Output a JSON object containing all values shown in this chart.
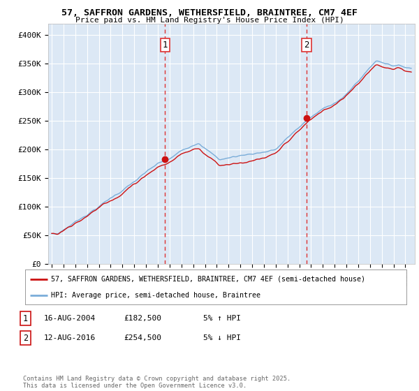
{
  "title": "57, SAFFRON GARDENS, WETHERSFIELD, BRAINTREE, CM7 4EF",
  "subtitle": "Price paid vs. HM Land Registry's House Price Index (HPI)",
  "background_color": "#ffffff",
  "plot_bg_color": "#dce8f5",
  "ylim": [
    0,
    420000
  ],
  "yticks": [
    0,
    50000,
    100000,
    150000,
    200000,
    250000,
    300000,
    350000,
    400000
  ],
  "ytick_labels": [
    "£0",
    "£50K",
    "£100K",
    "£150K",
    "£200K",
    "£250K",
    "£300K",
    "£350K",
    "£400K"
  ],
  "sale1_year": 2004.62,
  "sale1_price": 182500,
  "sale2_year": 2016.62,
  "sale2_price": 254500,
  "grid_color": "#ffffff",
  "hpi_line_color": "#7aadd9",
  "price_line_color": "#cc1111",
  "dashed_line_color": "#dd3333",
  "legend_label_price": "57, SAFFRON GARDENS, WETHERSFIELD, BRAINTREE, CM7 4EF (semi-detached house)",
  "legend_label_hpi": "HPI: Average price, semi-detached house, Braintree",
  "footnote": "Contains HM Land Registry data © Crown copyright and database right 2025.\nThis data is licensed under the Open Government Licence v3.0.",
  "table_row1": [
    "1",
    "16-AUG-2004",
    "£182,500",
    "5% ↑ HPI"
  ],
  "table_row2": [
    "2",
    "12-AUG-2016",
    "£254,500",
    "5% ↓ HPI"
  ]
}
